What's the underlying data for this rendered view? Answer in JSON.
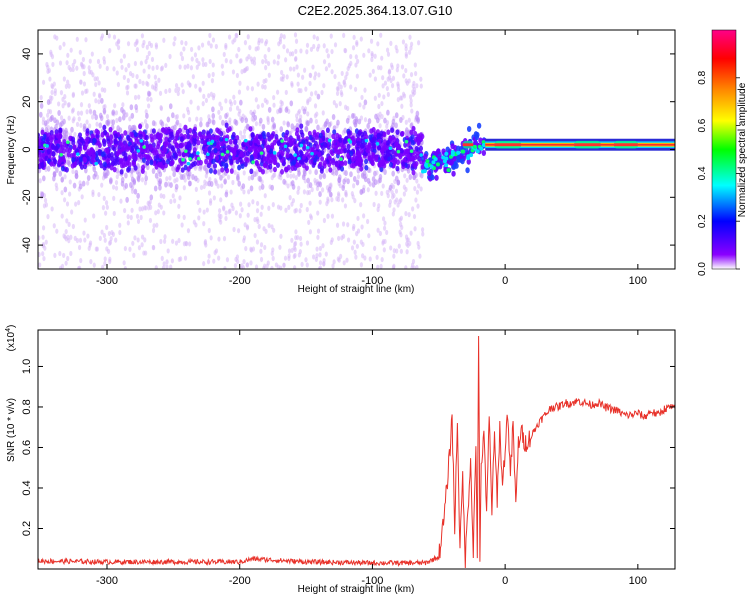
{
  "title": "C2E2.2025.364.13.07.G10",
  "chart_data": [
    {
      "type": "heatmap",
      "xlabel": "Height of straight line (km)",
      "ylabel": "Frequency (Hz)",
      "xlim": [
        -352,
        128
      ],
      "ylim": [
        -50,
        50
      ],
      "xticks": [
        -300,
        -200,
        -100,
        0,
        100
      ],
      "yticks": [
        -40,
        -20,
        0,
        20,
        40
      ],
      "xtick_labels": [
        "-300",
        "-200",
        "-100",
        "0",
        "100"
      ],
      "ytick_labels": [
        "-40",
        "-20",
        "0",
        "20",
        "40"
      ],
      "noise_band_xrange": [
        -352,
        -62
      ],
      "noise_band_core_hz": [
        -10,
        10
      ],
      "noise_scatter_hz": [
        -50,
        48
      ],
      "transition_xrange": [
        -62,
        -15
      ],
      "signal_line_xrange": [
        -15,
        128
      ],
      "signal_line_hz": 2,
      "signal_bright_segments": [
        [
          -32,
          -24
        ],
        [
          -8,
          12
        ],
        [
          52,
          72
        ],
        [
          82,
          100
        ]
      ],
      "colorbar": {
        "label": "Normalized spectral amplitude",
        "range": [
          0,
          1
        ],
        "ticks": [
          0.0,
          0.2,
          0.4,
          0.6,
          0.8
        ],
        "tick_labels": [
          "0.0",
          "0.2",
          "0.4",
          "0.6",
          "0.8"
        ],
        "colors": [
          "#ffffff",
          "#8a00ff",
          "#0000ff",
          "#00ffff",
          "#00ff00",
          "#ffff00",
          "#ff8800",
          "#ff0000",
          "#ff0088"
        ]
      }
    },
    {
      "type": "line",
      "xlabel": "Height of straight line (km)",
      "ylabel": "SNR (10 * v/v)",
      "multiplier_label": "(x10",
      "multiplier_exp": "4",
      "xlim": [
        -352,
        128
      ],
      "ylim": [
        0,
        1.18
      ],
      "xticks": [
        -300,
        -200,
        -100,
        0,
        100
      ],
      "yticks": [
        0.2,
        0.4,
        0.6,
        0.8,
        1.0
      ],
      "xtick_labels": [
        "-300",
        "-200",
        "-100",
        "0",
        "100"
      ],
      "ytick_labels": [
        "0.2",
        "0.4",
        "0.6",
        "0.8",
        "1.0"
      ],
      "series": [
        {
          "color": "#e8322a",
          "x": [
            -352,
            -300,
            -250,
            -200,
            -190,
            -150,
            -100,
            -60,
            -50,
            -46,
            -44,
            -42,
            -40,
            -38,
            -36,
            -34,
            -32,
            -30,
            -28,
            -26,
            -24,
            -22,
            -21,
            -20,
            -19,
            -18,
            -16,
            -14,
            -12,
            -10,
            -8,
            -6,
            -4,
            -2,
            0,
            2,
            4,
            6,
            8,
            10,
            12,
            15,
            20,
            25,
            30,
            35,
            40,
            45,
            50,
            55,
            60,
            65,
            70,
            75,
            80,
            85,
            90,
            95,
            100,
            105,
            110,
            115,
            120,
            125,
            128
          ],
          "y": [
            0.04,
            0.035,
            0.035,
            0.035,
            0.05,
            0.035,
            0.03,
            0.03,
            0.06,
            0.25,
            0.4,
            0.55,
            0.76,
            0.2,
            0.74,
            0.1,
            0.45,
            0.05,
            0.3,
            0.55,
            0.08,
            0.62,
            0.05,
            1.18,
            0.02,
            0.5,
            0.7,
            0.25,
            0.75,
            0.3,
            0.65,
            0.35,
            0.7,
            0.4,
            0.6,
            0.78,
            0.45,
            0.72,
            0.3,
            0.62,
            0.68,
            0.62,
            0.66,
            0.72,
            0.76,
            0.8,
            0.8,
            0.82,
            0.82,
            0.83,
            0.82,
            0.81,
            0.82,
            0.8,
            0.79,
            0.78,
            0.76,
            0.76,
            0.77,
            0.75,
            0.78,
            0.76,
            0.79,
            0.8,
            0.79
          ]
        }
      ]
    }
  ]
}
